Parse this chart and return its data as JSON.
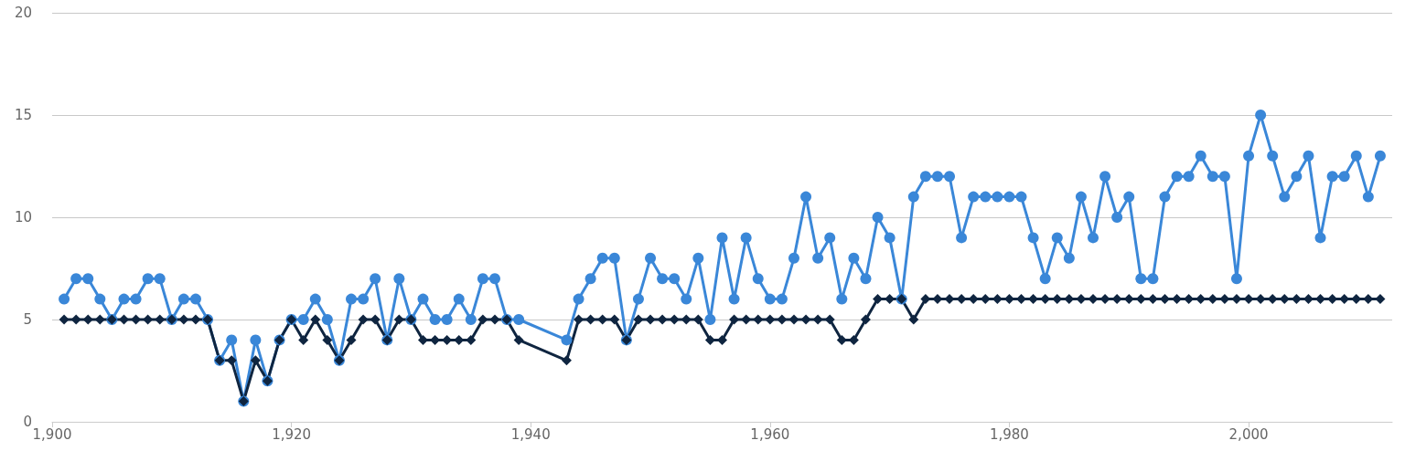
{
  "chart_data": {
    "type": "line",
    "x": [
      1901,
      1902,
      1903,
      1904,
      1905,
      1906,
      1907,
      1908,
      1909,
      1910,
      1911,
      1912,
      1913,
      1914,
      1915,
      1916,
      1917,
      1918,
      1919,
      1920,
      1921,
      1922,
      1923,
      1924,
      1925,
      1926,
      1927,
      1928,
      1929,
      1930,
      1931,
      1932,
      1933,
      1934,
      1935,
      1936,
      1937,
      1938,
      1939,
      1943,
      1944,
      1945,
      1946,
      1947,
      1948,
      1949,
      1950,
      1951,
      1952,
      1953,
      1954,
      1955,
      1956,
      1957,
      1958,
      1959,
      1960,
      1961,
      1962,
      1963,
      1964,
      1965,
      1966,
      1967,
      1968,
      1969,
      1970,
      1971,
      1972,
      1973,
      1974,
      1975,
      1976,
      1977,
      1978,
      1979,
      1980,
      1981,
      1982,
      1983,
      1984,
      1985,
      1986,
      1987,
      1988,
      1989,
      1990,
      1991,
      1992,
      1993,
      1994,
      1995,
      1996,
      1997,
      1998,
      1999,
      2000,
      2001,
      2002,
      2003,
      2004,
      2005,
      2006,
      2007,
      2008,
      2009,
      2010,
      2011
    ],
    "series": [
      {
        "color": "#3a87d8",
        "marker": "circle",
        "values": [
          6,
          7,
          7,
          6,
          5,
          6,
          6,
          7,
          7,
          5,
          6,
          6,
          5,
          3,
          4,
          1,
          4,
          2,
          4,
          5,
          5,
          6,
          5,
          3,
          6,
          6,
          7,
          4,
          7,
          5,
          6,
          5,
          5,
          6,
          5,
          7,
          7,
          5,
          5,
          4,
          6,
          7,
          8,
          8,
          4,
          6,
          8,
          7,
          7,
          6,
          8,
          5,
          9,
          6,
          9,
          7,
          6,
          6,
          8,
          11,
          8,
          9,
          6,
          8,
          7,
          10,
          9,
          6,
          11,
          12,
          12,
          12,
          9,
          11,
          11,
          11,
          11,
          11,
          9,
          7,
          9,
          8,
          11,
          9,
          12,
          10,
          11,
          7,
          7,
          11,
          12,
          12,
          13,
          12,
          12,
          7,
          13,
          15,
          13,
          11,
          12,
          13,
          9,
          12,
          12,
          13,
          11,
          13
        ]
      },
      {
        "color": "#0f2540",
        "marker": "diamond",
        "values": [
          5,
          5,
          5,
          5,
          5,
          5,
          5,
          5,
          5,
          5,
          5,
          5,
          5,
          3,
          3,
          1,
          3,
          2,
          4,
          5,
          4,
          5,
          4,
          3,
          4,
          5,
          5,
          4,
          5,
          5,
          4,
          4,
          4,
          4,
          4,
          5,
          5,
          5,
          4,
          3,
          5,
          5,
          5,
          5,
          4,
          5,
          5,
          5,
          5,
          5,
          5,
          4,
          4,
          5,
          5,
          5,
          5,
          5,
          5,
          5,
          5,
          5,
          4,
          4,
          5,
          6,
          6,
          6,
          5,
          6,
          6,
          6,
          6,
          6,
          6,
          6,
          6,
          6,
          6,
          6,
          6,
          6,
          6,
          6,
          6,
          6,
          6,
          6,
          6,
          6,
          6,
          6,
          6,
          6,
          6,
          6,
          6,
          6,
          6,
          6,
          6,
          6,
          6,
          6,
          6,
          6,
          6,
          6
        ]
      }
    ],
    "xlim": [
      1900,
      2012
    ],
    "xticks": [
      {
        "value": 1900,
        "label": "1,900"
      },
      {
        "value": 1920,
        "label": "1,920"
      },
      {
        "value": 1940,
        "label": "1,940"
      },
      {
        "value": 1960,
        "label": "1,960"
      },
      {
        "value": 1980,
        "label": "1,980"
      },
      {
        "value": 2000,
        "label": "2,000"
      }
    ],
    "ylim": [
      0,
      20
    ],
    "yticks": [
      0,
      5,
      10,
      15,
      20
    ],
    "grid": "y",
    "line_style": "solid"
  }
}
